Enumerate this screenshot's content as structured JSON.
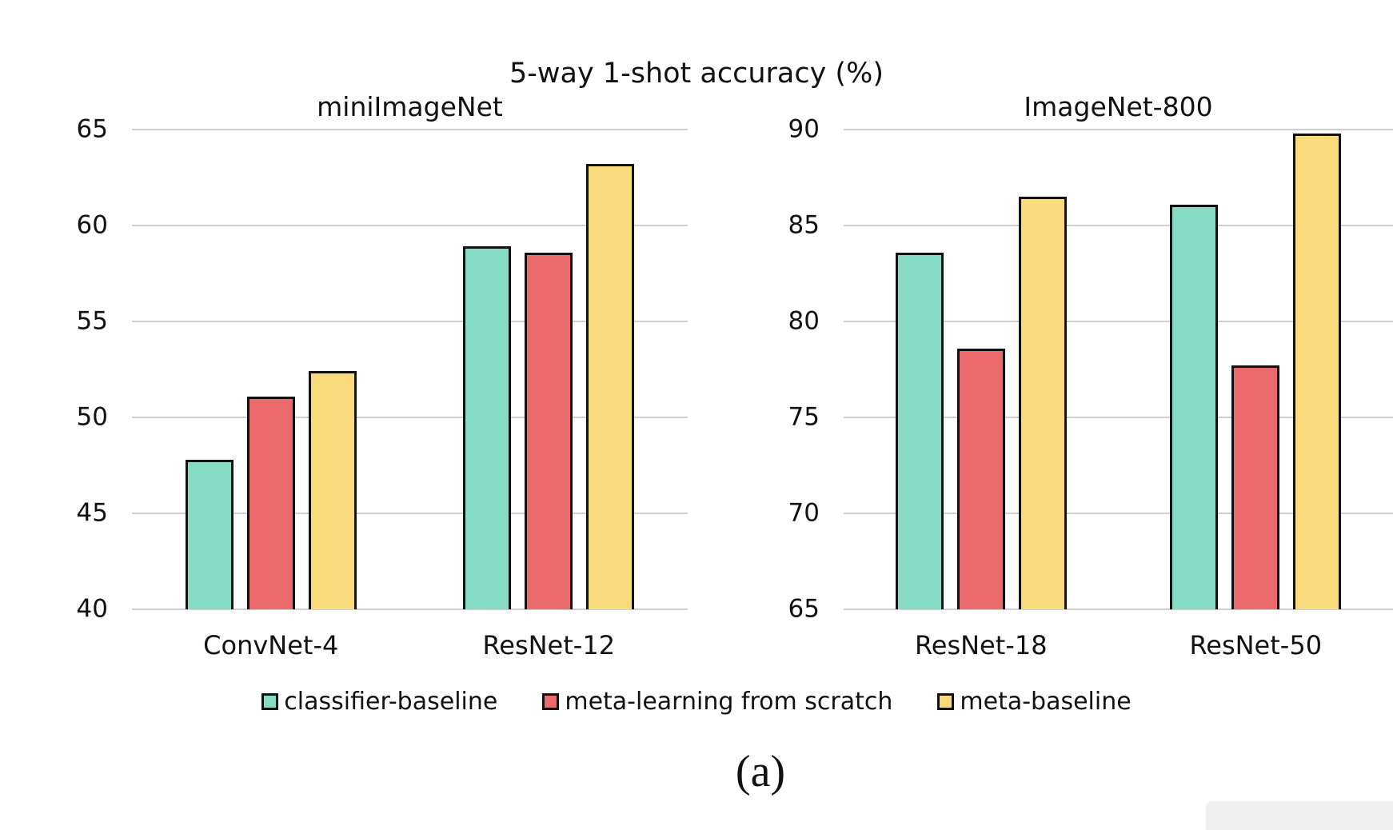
{
  "title": "5-way 1-shot accuracy (%)",
  "caption": "(a)",
  "colors": {
    "classifier_baseline": "#85DBC4",
    "meta_learning_from_scratch": "#EB6A6E",
    "meta_baseline": "#F8DC7B",
    "bar_border": "#111111",
    "gridline": "#CFCFCF",
    "text": "#111111",
    "background": "#FFFFFF"
  },
  "legend": [
    {
      "label": "classifier-baseline",
      "color": "#85DBC4"
    },
    {
      "label": "meta-learning from scratch",
      "color": "#EB6A6E"
    },
    {
      "label": "meta-baseline",
      "color": "#F8DC7B"
    }
  ],
  "legend_position": "bottom-center",
  "chart_data": [
    {
      "type": "bar",
      "title": "miniImageNet",
      "categories": [
        "ConvNet-4",
        "ResNet-12"
      ],
      "series": [
        {
          "name": "classifier-baseline",
          "values": [
            47.8,
            58.9
          ]
        },
        {
          "name": "meta-learning from scratch",
          "values": [
            51.1,
            58.6
          ]
        },
        {
          "name": "meta-baseline",
          "values": [
            52.4,
            63.2
          ]
        }
      ],
      "xlabel": "",
      "ylabel": "",
      "ylim": [
        40,
        65
      ],
      "yticks": [
        40,
        45,
        50,
        55,
        60,
        65
      ],
      "grid": true
    },
    {
      "type": "bar",
      "title": "ImageNet-800",
      "categories": [
        "ResNet-18",
        "ResNet-50"
      ],
      "series": [
        {
          "name": "classifier-baseline",
          "values": [
            83.6,
            86.1
          ]
        },
        {
          "name": "meta-learning from scratch",
          "values": [
            78.6,
            77.7
          ]
        },
        {
          "name": "meta-baseline",
          "values": [
            86.5,
            89.8
          ]
        }
      ],
      "xlabel": "",
      "ylabel": "",
      "ylim": [
        65,
        90
      ],
      "yticks": [
        65,
        70,
        75,
        80,
        85,
        90
      ],
      "grid": true
    }
  ]
}
